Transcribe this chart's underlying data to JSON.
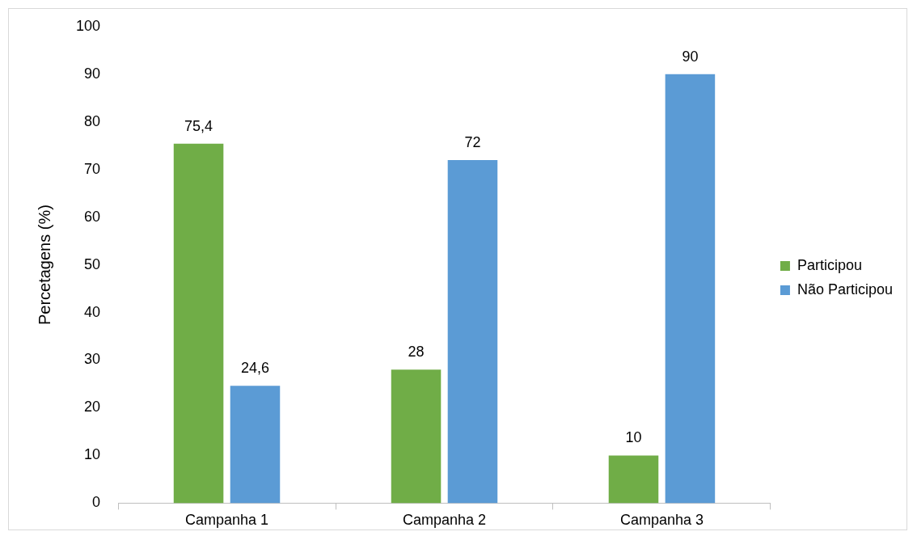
{
  "chart_data": {
    "type": "bar",
    "ylabel": "Percetagens (%)",
    "categories": [
      "Campanha 1",
      "Campanha 2",
      "Campanha 3"
    ],
    "series": [
      {
        "name": "Participou",
        "color": "#70ad47",
        "values": [
          75.4,
          28,
          10
        ],
        "value_labels": [
          "75,4",
          "28",
          "10"
        ]
      },
      {
        "name": "Não Participou",
        "color": "#5b9bd5",
        "values": [
          24.6,
          72,
          90
        ],
        "value_labels": [
          "24,6",
          "72",
          "90"
        ]
      }
    ],
    "ylim": [
      0,
      100
    ],
    "yticks": [
      0,
      10,
      20,
      30,
      40,
      50,
      60,
      70,
      80,
      90,
      100
    ],
    "grid": false,
    "legend": "right"
  }
}
